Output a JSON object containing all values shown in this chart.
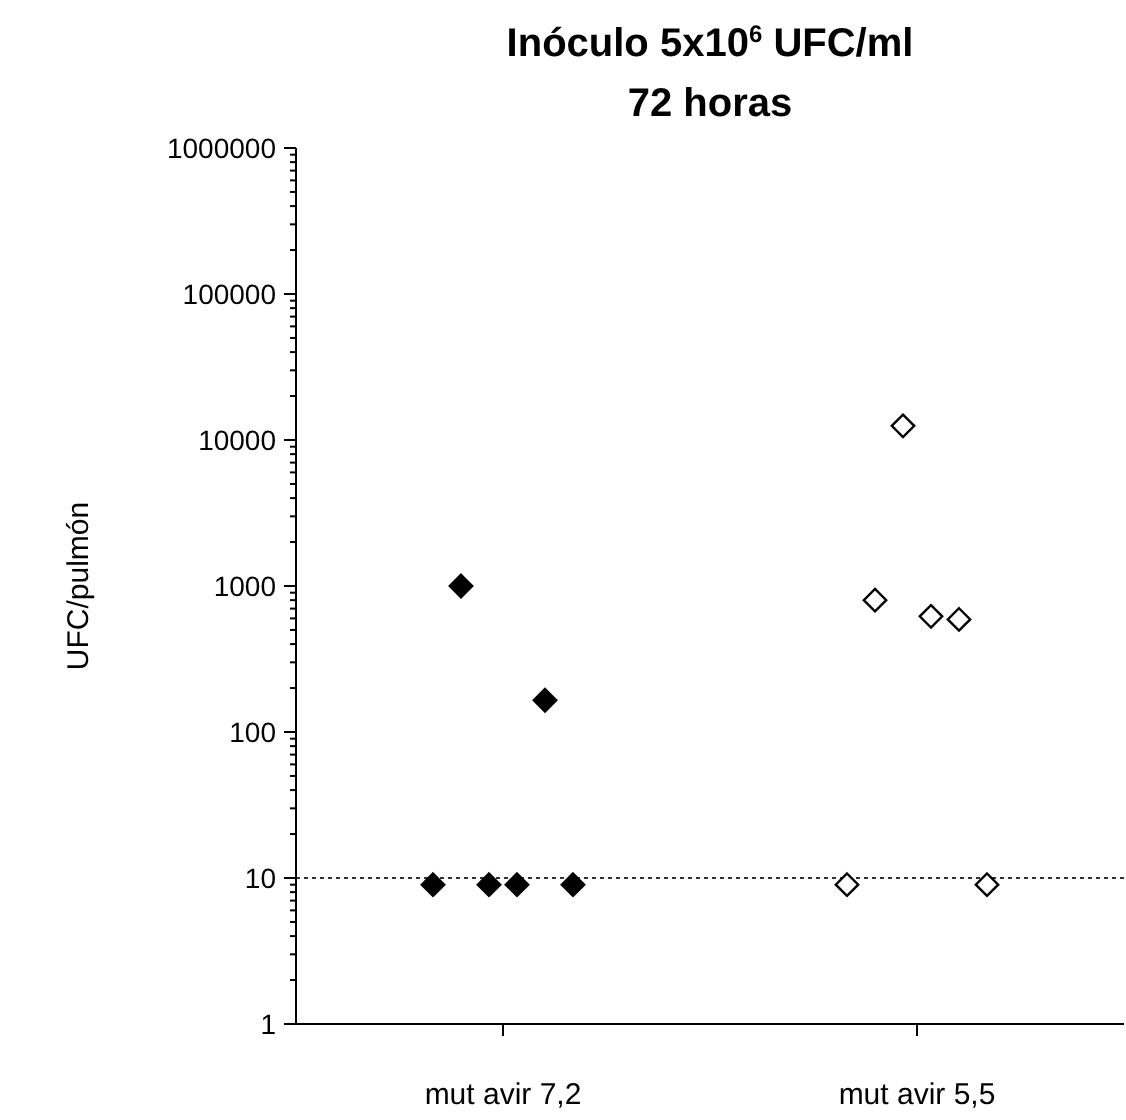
{
  "chart_data": {
    "type": "scatter",
    "title": "Inóculo 5x10$^{6}$ UFC/ml",
    "subtitle": "72 horas",
    "ylabel": "UFC/pulmón",
    "log": "y",
    "marker": "diamond",
    "grid": false,
    "categories": [
      "mut avir 7,2",
      "mut avir 5,5"
    ],
    "ylim": [
      1,
      1000000
    ],
    "yticks": [
      1,
      10,
      100,
      1000,
      10000,
      100000,
      1000000
    ],
    "ref_lines": [
      {
        "axis": "y",
        "value": 10,
        "label": null,
        "color": "#333333",
        "line_style": "dotted"
      }
    ],
    "series": [
      {
        "color": "#000000",
        "x": [
          "mut avir 7,2",
          "mut avir 7,2",
          "mut avir 7,2",
          "mut avir 7,2",
          "mut avir 7,2",
          "mut avir 7,2"
        ],
        "values": [
          9,
          1000,
          9,
          9,
          165,
          9
        ]
      },
      {
        "color": "#ffffff",
        "x": [
          "mut avir 5,5",
          "mut avir 5,5",
          "mut avir 5,5",
          "mut avir 5,5",
          "mut avir 5,5",
          "mut avir 5,5"
        ],
        "values": [
          9,
          800,
          12500,
          620,
          590,
          9
        ]
      }
    ]
  }
}
